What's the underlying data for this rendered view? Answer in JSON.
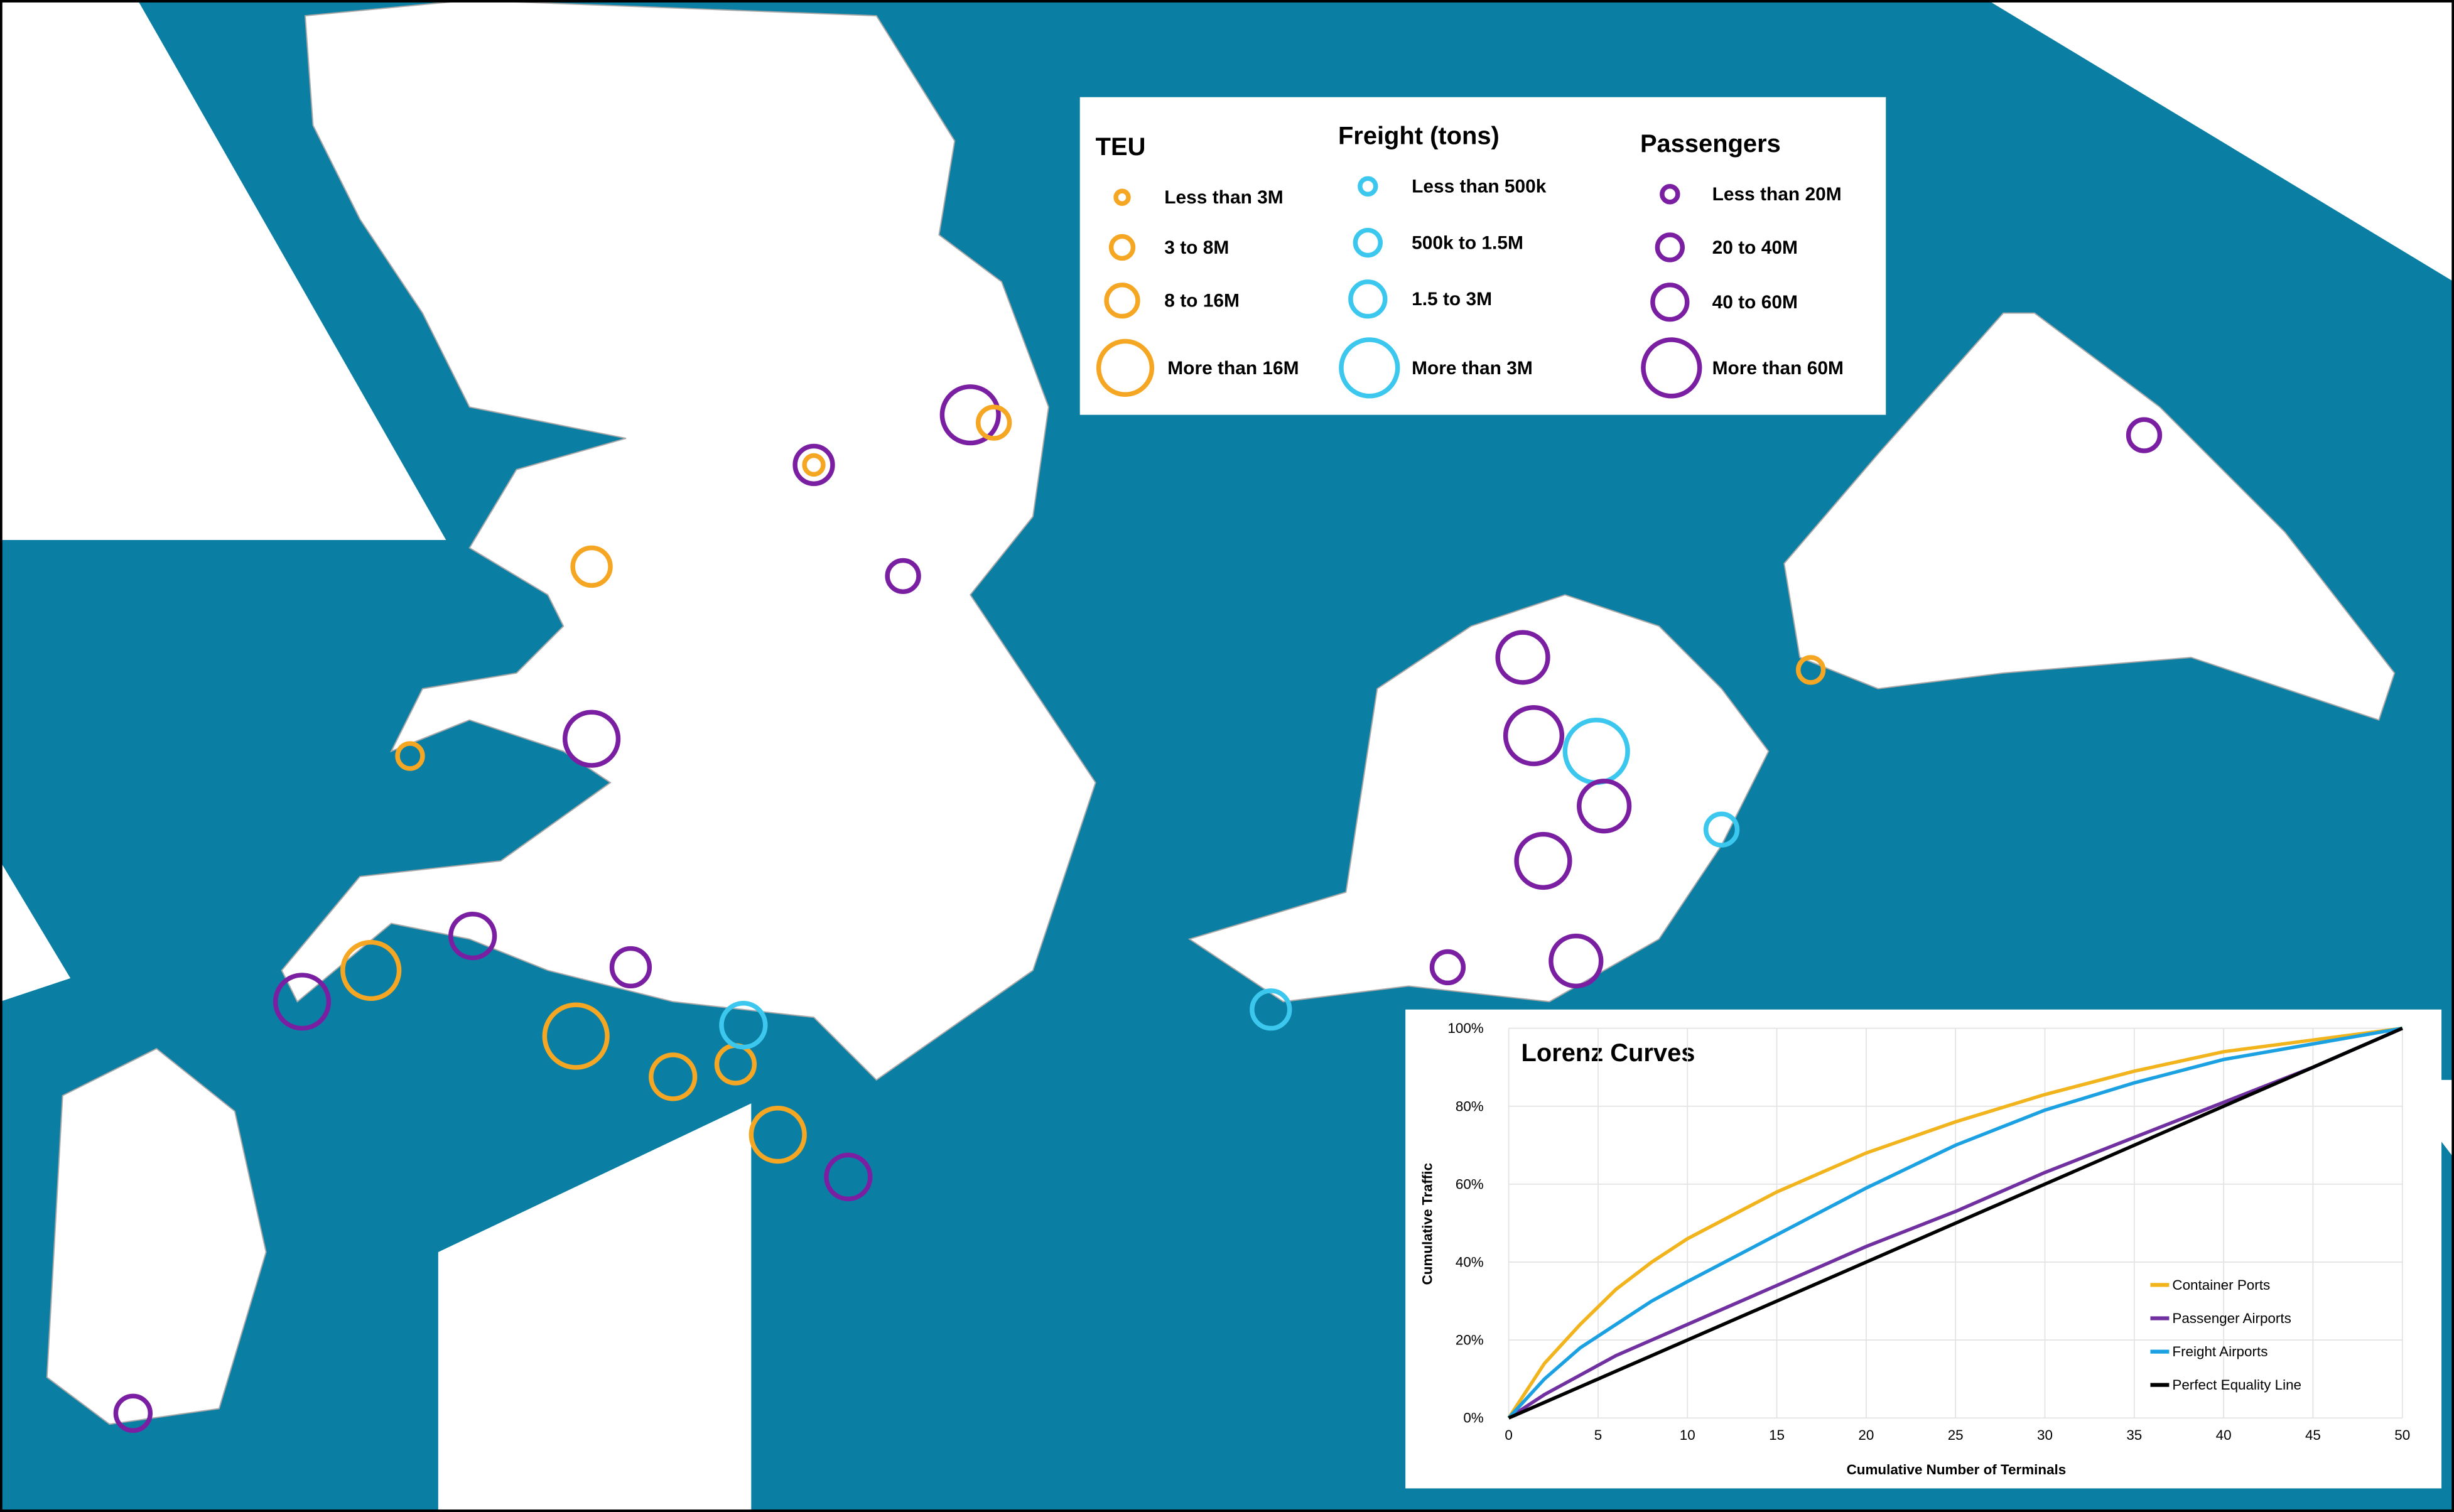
{
  "legend": {
    "teu": {
      "title": "TEU",
      "items": [
        "Less than 3M",
        "3 to 8M",
        "8 to 16M",
        "More than 16M"
      ]
    },
    "freight": {
      "title": "Freight (tons)",
      "items": [
        "Less than 500k",
        "500k to 1.5M",
        "1.5 to 3M",
        "More than 3M"
      ]
    },
    "passengers": {
      "title": "Passengers",
      "items": [
        "Less than 20M",
        "20 to 40M",
        "40 to 60M",
        "More than 60M"
      ]
    }
  },
  "chart_data": {
    "type": "line",
    "title": "Lorenz Curves",
    "x_label": "Cumulative Number of Terminals",
    "y_label": "Cumulative Traffic",
    "x": [
      0,
      2,
      4,
      6,
      8,
      10,
      15,
      20,
      25,
      30,
      35,
      40,
      45,
      50
    ],
    "series": [
      {
        "name": "Container Ports",
        "color": "#f2b41c",
        "values": [
          0,
          14,
          24,
          33,
          40,
          46,
          58,
          68,
          76,
          83,
          89,
          94,
          97,
          100
        ]
      },
      {
        "name": "Passenger Airports",
        "color": "#7030a0",
        "values": [
          0,
          6,
          11,
          16,
          20,
          24,
          34,
          44,
          53,
          63,
          72,
          81,
          90,
          100
        ]
      },
      {
        "name": "Freight Airports",
        "color": "#1ba1e2",
        "values": [
          0,
          10,
          18,
          24,
          30,
          35,
          47,
          59,
          70,
          79,
          86,
          92,
          96,
          100
        ]
      },
      {
        "name": "Perfect Equality Line",
        "color": "#000000",
        "values": [
          0,
          4,
          8,
          12,
          16,
          20,
          30,
          40,
          50,
          60,
          70,
          80,
          90,
          100
        ]
      }
    ],
    "xlim": [
      0,
      50
    ],
    "ylim": [
      0,
      100
    ],
    "xticks": [
      0,
      5,
      10,
      15,
      20,
      25,
      30,
      35,
      40,
      45,
      50
    ],
    "yticks": [
      {
        "value": 0,
        "label": "0%"
      },
      {
        "value": 20,
        "label": "20%"
      },
      {
        "value": 40,
        "label": "40%"
      },
      {
        "value": 60,
        "label": "60%"
      },
      {
        "value": 80,
        "label": "80%"
      },
      {
        "value": 100,
        "label": "100%"
      }
    ],
    "grid": true
  }
}
